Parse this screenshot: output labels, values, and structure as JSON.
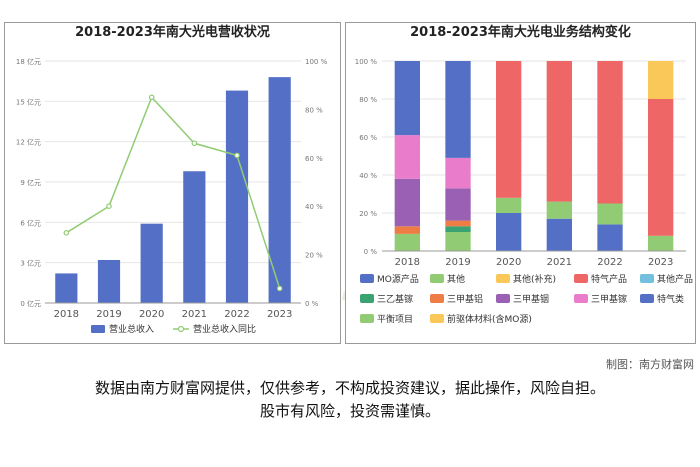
{
  "watermark": {
    "brand": "南方财富网",
    "url": "Southmoney.com"
  },
  "credit": "制图：南方财富网",
  "disclaimer": [
    "数据由南方财富网提供，仅供参考，不构成投资建议，据此操作，风险自担。",
    "股市有风险，投资需谨慎。"
  ],
  "chart_data": [
    {
      "type": "bar",
      "title": "2018-2023年南大光电营收状况",
      "categories": [
        "2018",
        "2019",
        "2020",
        "2021",
        "2022",
        "2023"
      ],
      "series": [
        {
          "name": "营业总收入",
          "type": "bar",
          "axis": "left",
          "unit": "亿元",
          "color": "#5470c6",
          "values": [
            2.2,
            3.2,
            5.9,
            9.8,
            15.8,
            16.8
          ]
        },
        {
          "name": "营业总收入同比",
          "type": "line",
          "axis": "right",
          "unit": "%",
          "color": "#91cc75",
          "values": [
            29,
            40,
            85,
            66,
            61,
            6
          ]
        }
      ],
      "y_left": {
        "ticks": [
          "0 亿元",
          "3 亿元",
          "6 亿元",
          "9 亿元",
          "12 亿元",
          "15 亿元",
          "18 亿元"
        ],
        "ylim": [
          0,
          18
        ]
      },
      "y_right": {
        "ticks": [
          "0 %",
          "20 %",
          "40 %",
          "60 %",
          "80 %",
          "100 %"
        ],
        "ylim": [
          0,
          100
        ]
      },
      "legend_position": "bottom",
      "grid": true
    },
    {
      "type": "bar",
      "stacked": true,
      "title": "2018-2023年南大光电业务结构变化",
      "categories": [
        "2018",
        "2019",
        "2020",
        "2021",
        "2022",
        "2023"
      ],
      "y_ticks": [
        "0 %",
        "20 %",
        "40 %",
        "60 %",
        "80 %",
        "100 %"
      ],
      "ylim": [
        0,
        100
      ],
      "legend_position": "bottom",
      "grid": true,
      "series": [
        {
          "name": "平衡项目",
          "color": "#91cc75",
          "values": [
            9,
            10,
            0,
            0,
            0,
            8
          ]
        },
        {
          "name": "三乙基镓",
          "color": "#3ba272",
          "values": [
            0,
            3,
            0,
            0,
            0,
            0
          ]
        },
        {
          "name": "三甲基铝",
          "color": "#ee7d45",
          "values": [
            4,
            3,
            0,
            0,
            0,
            0
          ]
        },
        {
          "name": "三甲基铟",
          "color": "#9a60b4",
          "values": [
            25,
            17,
            0,
            0,
            0,
            0
          ]
        },
        {
          "name": "三甲基镓",
          "color": "#ea7ccc",
          "values": [
            23,
            16,
            0,
            0,
            0,
            0
          ]
        },
        {
          "name": "MO源产品",
          "color": "#5470c6",
          "values": [
            39,
            51,
            20,
            17,
            14,
            0
          ]
        },
        {
          "name": "其他",
          "color": "#91cc75",
          "values": [
            0,
            0,
            8,
            9,
            11,
            0
          ]
        },
        {
          "name": "特气产品",
          "color": "#ee6666",
          "values": [
            0,
            0,
            72,
            74,
            75,
            72
          ]
        },
        {
          "name": "其他(补充)",
          "color": "#fac858",
          "values": [
            0,
            0,
            0,
            0,
            0,
            20
          ]
        },
        {
          "name": "其他产品",
          "color": "#73c0de",
          "values": [
            0,
            0,
            0,
            0,
            0,
            0
          ]
        },
        {
          "name": "特气类",
          "color": "#5470c6",
          "values": [
            0,
            0,
            0,
            0,
            0,
            0
          ]
        },
        {
          "name": "前驱体材料(含MO源)",
          "color": "#fac858",
          "values": [
            0,
            0,
            0,
            0,
            0,
            0
          ]
        }
      ],
      "legend_order": [
        "MO源产品",
        "其他",
        "其他(补充)",
        "特气产品",
        "其他产品",
        "三乙基镓",
        "三甲基铝",
        "三甲基铟",
        "三甲基镓",
        "特气类",
        "平衡项目",
        "前驱体材料(含MO源)"
      ]
    }
  ]
}
